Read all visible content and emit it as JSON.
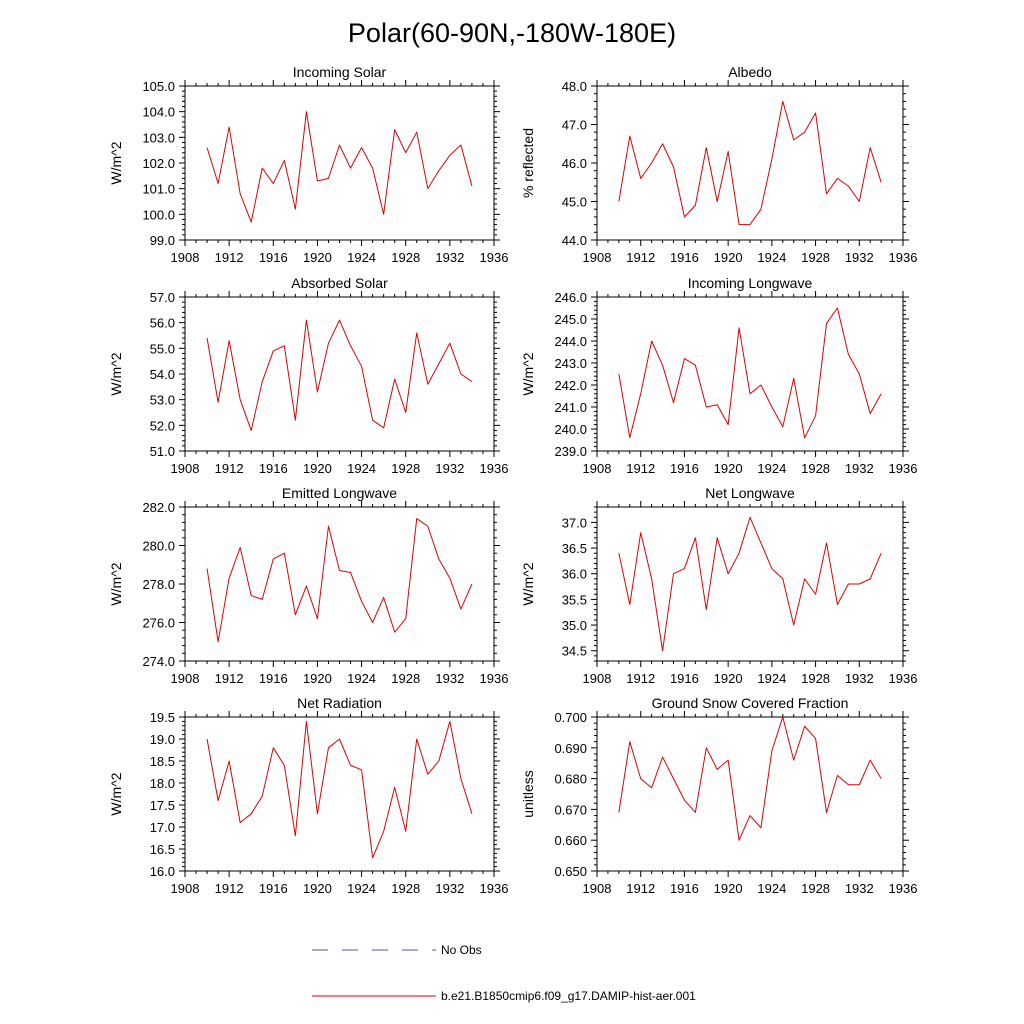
{
  "figure": {
    "title": "Polar(60-90N,-180W-180E)",
    "legend": [
      {
        "label": "No Obs",
        "color": "#5050b0",
        "style": "dashed"
      },
      {
        "label": "b.e21.B1850cmip6.f09_g17.DAMIP-hist-aer.001",
        "color": "#e00000",
        "style": "solid"
      }
    ]
  },
  "chart_data": [
    {
      "type": "line",
      "title": "Incoming Solar",
      "ylabel": "W/m^2",
      "xlim": [
        1908,
        1936
      ],
      "xticks": [
        1908,
        1912,
        1916,
        1920,
        1924,
        1928,
        1932,
        1936
      ],
      "ylim": [
        99.0,
        105.0
      ],
      "yticks": [
        99.0,
        100.0,
        101.0,
        102.0,
        103.0,
        104.0,
        105.0
      ],
      "ydecimals": 1,
      "grid": false,
      "series": [
        {
          "color": "#e00000",
          "x": [
            1910,
            1911,
            1912,
            1913,
            1914,
            1915,
            1916,
            1917,
            1918,
            1919,
            1920,
            1921,
            1922,
            1923,
            1924,
            1925,
            1926,
            1927,
            1928,
            1929,
            1930,
            1931,
            1932,
            1933,
            1934
          ],
          "values": [
            102.6,
            101.2,
            103.4,
            100.8,
            99.7,
            101.8,
            101.2,
            102.1,
            100.2,
            104.0,
            101.3,
            101.4,
            102.7,
            101.8,
            102.6,
            101.8,
            100.0,
            103.3,
            102.4,
            103.2,
            101.0,
            101.7,
            102.3,
            102.7,
            101.1
          ]
        }
      ]
    },
    {
      "type": "line",
      "title": "Albedo",
      "ylabel": "% reflected",
      "xlim": [
        1908,
        1936
      ],
      "xticks": [
        1908,
        1912,
        1916,
        1920,
        1924,
        1928,
        1932,
        1936
      ],
      "ylim": [
        44.0,
        48.0
      ],
      "yticks": [
        44.0,
        45.0,
        46.0,
        47.0,
        48.0
      ],
      "ydecimals": 1,
      "grid": false,
      "series": [
        {
          "color": "#e00000",
          "x": [
            1910,
            1911,
            1912,
            1913,
            1914,
            1915,
            1916,
            1917,
            1918,
            1919,
            1920,
            1921,
            1922,
            1923,
            1924,
            1925,
            1926,
            1927,
            1928,
            1929,
            1930,
            1931,
            1932,
            1933,
            1934
          ],
          "values": [
            45.0,
            46.7,
            45.6,
            46.0,
            46.5,
            45.9,
            44.6,
            44.9,
            46.4,
            45.0,
            46.3,
            44.4,
            44.4,
            44.8,
            46.1,
            47.6,
            46.6,
            46.8,
            47.3,
            45.2,
            45.6,
            45.4,
            45.0,
            46.4,
            45.5
          ]
        }
      ]
    },
    {
      "type": "line",
      "title": "Absorbed Solar",
      "ylabel": "W/m^2",
      "xlim": [
        1908,
        1936
      ],
      "xticks": [
        1908,
        1912,
        1916,
        1920,
        1924,
        1928,
        1932,
        1936
      ],
      "ylim": [
        51.0,
        57.0
      ],
      "yticks": [
        51.0,
        52.0,
        53.0,
        54.0,
        55.0,
        56.0,
        57.0
      ],
      "ydecimals": 1,
      "grid": false,
      "series": [
        {
          "color": "#e00000",
          "x": [
            1910,
            1911,
            1912,
            1913,
            1914,
            1915,
            1916,
            1917,
            1918,
            1919,
            1920,
            1921,
            1922,
            1923,
            1924,
            1925,
            1926,
            1927,
            1928,
            1929,
            1930,
            1931,
            1932,
            1933,
            1934
          ],
          "values": [
            55.4,
            52.9,
            55.3,
            53.0,
            51.8,
            53.7,
            54.9,
            55.1,
            52.2,
            56.1,
            53.3,
            55.2,
            56.1,
            55.1,
            54.3,
            52.2,
            51.9,
            53.8,
            52.5,
            55.6,
            53.6,
            54.4,
            55.2,
            54.0,
            53.7
          ]
        }
      ]
    },
    {
      "type": "line",
      "title": "Incoming Longwave",
      "ylabel": "W/m^2",
      "xlim": [
        1908,
        1936
      ],
      "xticks": [
        1908,
        1912,
        1916,
        1920,
        1924,
        1928,
        1932,
        1936
      ],
      "ylim": [
        239.0,
        246.0
      ],
      "yticks": [
        239.0,
        240.0,
        241.0,
        242.0,
        243.0,
        244.0,
        245.0,
        246.0
      ],
      "ydecimals": 1,
      "grid": false,
      "series": [
        {
          "color": "#e00000",
          "x": [
            1910,
            1911,
            1912,
            1913,
            1914,
            1915,
            1916,
            1917,
            1918,
            1919,
            1920,
            1921,
            1922,
            1923,
            1924,
            1925,
            1926,
            1927,
            1928,
            1929,
            1930,
            1931,
            1932,
            1933,
            1934
          ],
          "values": [
            242.5,
            239.6,
            241.6,
            244.0,
            242.9,
            241.2,
            243.2,
            242.9,
            241.0,
            241.1,
            240.2,
            244.6,
            241.6,
            242.0,
            241.0,
            240.1,
            242.3,
            239.6,
            240.6,
            244.8,
            245.5,
            243.4,
            242.5,
            240.7,
            241.6
          ]
        }
      ]
    },
    {
      "type": "line",
      "title": "Emitted Longwave",
      "ylabel": "W/m^2",
      "xlim": [
        1908,
        1936
      ],
      "xticks": [
        1908,
        1912,
        1916,
        1920,
        1924,
        1928,
        1932,
        1936
      ],
      "ylim": [
        274.0,
        282.0
      ],
      "yticks": [
        274.0,
        276.0,
        278.0,
        280.0,
        282.0
      ],
      "ydecimals": 1,
      "grid": false,
      "series": [
        {
          "color": "#e00000",
          "x": [
            1910,
            1911,
            1912,
            1913,
            1914,
            1915,
            1916,
            1917,
            1918,
            1919,
            1920,
            1921,
            1922,
            1923,
            1924,
            1925,
            1926,
            1927,
            1928,
            1929,
            1930,
            1931,
            1932,
            1933,
            1934
          ],
          "values": [
            278.8,
            275.0,
            278.3,
            279.9,
            277.4,
            277.2,
            279.3,
            279.6,
            276.4,
            277.9,
            276.2,
            281.0,
            278.7,
            278.6,
            277.1,
            276.0,
            277.3,
            275.5,
            276.2,
            281.4,
            281.0,
            279.3,
            278.3,
            276.7,
            278.0
          ]
        }
      ]
    },
    {
      "type": "line",
      "title": "Net Longwave",
      "ylabel": "W/m^2",
      "xlim": [
        1908,
        1936
      ],
      "xticks": [
        1908,
        1912,
        1916,
        1920,
        1924,
        1928,
        1932,
        1936
      ],
      "ylim": [
        34.3,
        37.3
      ],
      "yticks": [
        34.5,
        35.0,
        35.5,
        36.0,
        36.5,
        37.0
      ],
      "ydecimals": 1,
      "grid": false,
      "series": [
        {
          "color": "#e00000",
          "x": [
            1910,
            1911,
            1912,
            1913,
            1914,
            1915,
            1916,
            1917,
            1918,
            1919,
            1920,
            1921,
            1922,
            1923,
            1924,
            1925,
            1926,
            1927,
            1928,
            1929,
            1930,
            1931,
            1932,
            1933,
            1934
          ],
          "values": [
            36.4,
            35.4,
            36.8,
            35.9,
            34.5,
            36.0,
            36.1,
            36.7,
            35.3,
            36.7,
            36.0,
            36.4,
            37.1,
            36.6,
            36.1,
            35.9,
            35.0,
            35.9,
            35.6,
            36.6,
            35.4,
            35.8,
            35.8,
            35.9,
            36.4
          ]
        }
      ]
    },
    {
      "type": "line",
      "title": "Net Radiation",
      "ylabel": "W/m^2",
      "xlim": [
        1908,
        1936
      ],
      "xticks": [
        1908,
        1912,
        1916,
        1920,
        1924,
        1928,
        1932,
        1936
      ],
      "ylim": [
        16.0,
        19.5
      ],
      "yticks": [
        16.0,
        16.5,
        17.0,
        17.5,
        18.0,
        18.5,
        19.0,
        19.5
      ],
      "ydecimals": 1,
      "grid": false,
      "series": [
        {
          "color": "#e00000",
          "x": [
            1910,
            1911,
            1912,
            1913,
            1914,
            1915,
            1916,
            1917,
            1918,
            1919,
            1920,
            1921,
            1922,
            1923,
            1924,
            1925,
            1926,
            1927,
            1928,
            1929,
            1930,
            1931,
            1932,
            1933,
            1934
          ],
          "values": [
            19.0,
            17.6,
            18.5,
            17.1,
            17.3,
            17.7,
            18.8,
            18.4,
            16.8,
            19.4,
            17.3,
            18.8,
            19.0,
            18.4,
            18.3,
            16.3,
            16.9,
            17.9,
            16.9,
            19.0,
            18.2,
            18.5,
            19.4,
            18.1,
            17.3
          ]
        }
      ]
    },
    {
      "type": "line",
      "title": "Ground Snow Covered Fraction",
      "ylabel": "unitless",
      "xlim": [
        1908,
        1936
      ],
      "xticks": [
        1908,
        1912,
        1916,
        1920,
        1924,
        1928,
        1932,
        1936
      ],
      "ylim": [
        0.65,
        0.7
      ],
      "yticks": [
        0.65,
        0.66,
        0.67,
        0.68,
        0.69,
        0.7
      ],
      "ydecimals": 3,
      "grid": false,
      "series": [
        {
          "color": "#e00000",
          "x": [
            1910,
            1911,
            1912,
            1913,
            1914,
            1915,
            1916,
            1917,
            1918,
            1919,
            1920,
            1921,
            1922,
            1923,
            1924,
            1925,
            1926,
            1927,
            1928,
            1929,
            1930,
            1931,
            1932,
            1933,
            1934
          ],
          "values": [
            0.669,
            0.692,
            0.68,
            0.677,
            0.687,
            0.68,
            0.673,
            0.669,
            0.69,
            0.683,
            0.686,
            0.66,
            0.668,
            0.664,
            0.689,
            0.7,
            0.686,
            0.697,
            0.693,
            0.669,
            0.681,
            0.678,
            0.678,
            0.686,
            0.68
          ]
        }
      ]
    }
  ]
}
